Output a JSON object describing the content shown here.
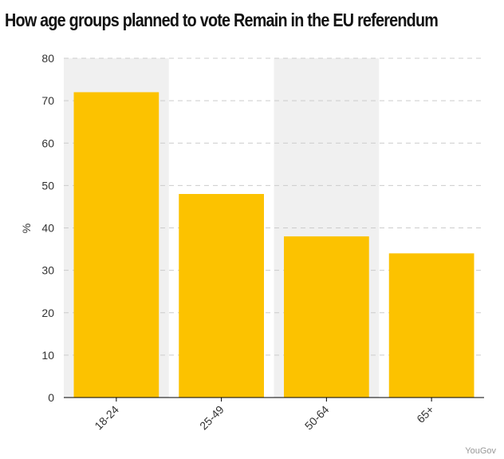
{
  "chart_data": {
    "type": "bar",
    "title": "How age groups planned to vote Remain in the EU referendum",
    "categories": [
      "18-24",
      "25-49",
      "50-64",
      "65+"
    ],
    "values": [
      72,
      48,
      38,
      34
    ],
    "xlabel": "",
    "ylabel": "%",
    "ylim": [
      0,
      80
    ],
    "yticks": [
      0,
      10,
      20,
      30,
      40,
      50,
      60,
      70,
      80
    ],
    "grid": true,
    "legend": "none",
    "source": "YouGov",
    "colors": {
      "bar": "#fcc200",
      "band": "#f0f0f0",
      "grid": "#cccccc",
      "axis": "#000000"
    }
  }
}
